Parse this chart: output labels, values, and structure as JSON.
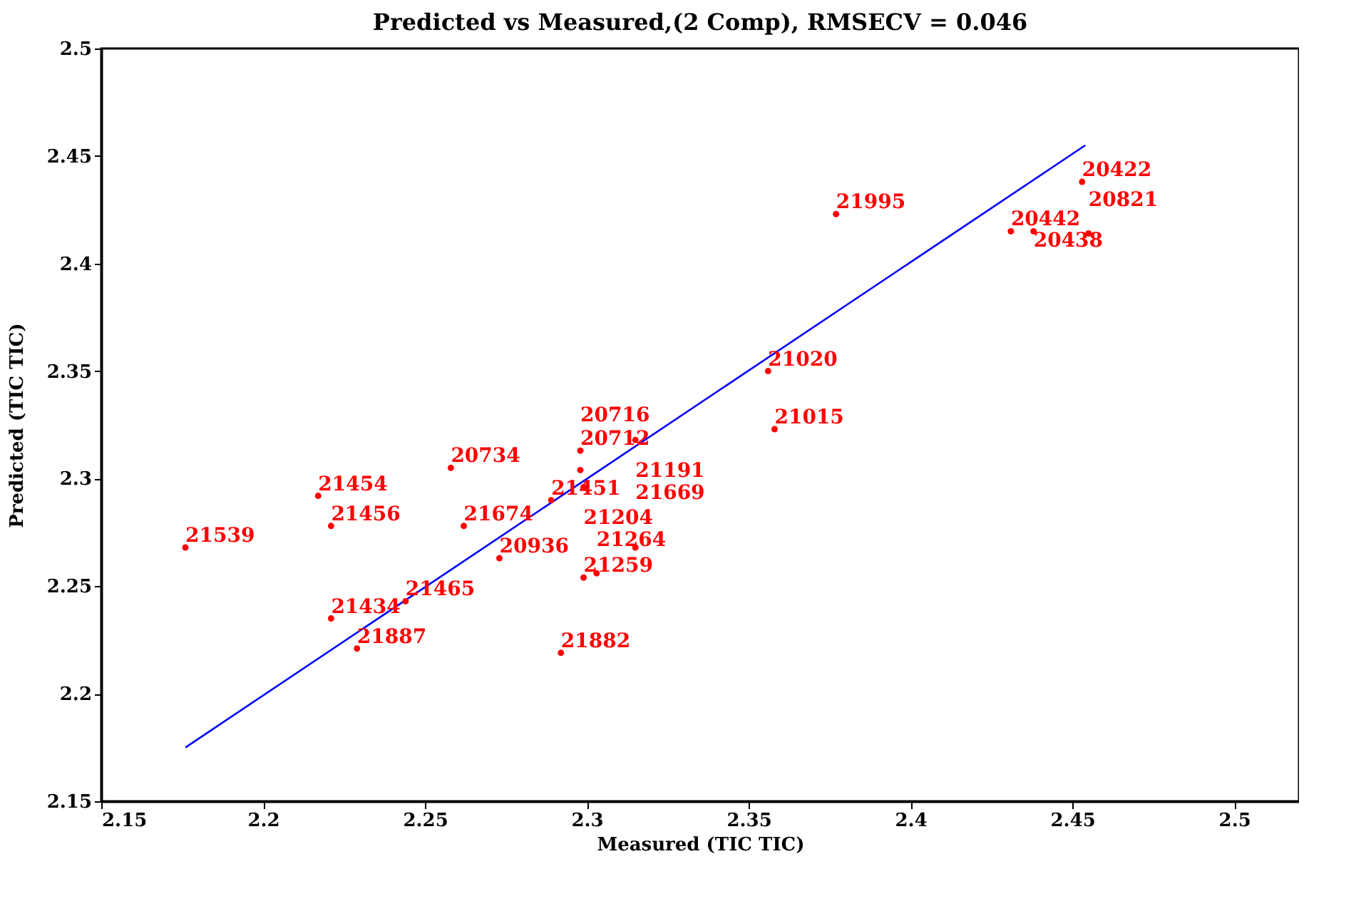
{
  "chart_data": {
    "type": "scatter",
    "title": "Predicted vs Measured,(2 Comp), RMSECV = 0.046",
    "xlabel": "Measured (TIC TIC)",
    "ylabel": "Predicted (TIC TIC)",
    "xlim": [
      2.15,
      2.52
    ],
    "ylim": [
      2.15,
      2.5
    ],
    "xticks": [
      2.15,
      2.2,
      2.25,
      2.3,
      2.35,
      2.4,
      2.45,
      2.5
    ],
    "yticks": [
      2.15,
      2.2,
      2.25,
      2.3,
      2.35,
      2.4,
      2.45,
      2.5
    ],
    "grid": false,
    "marker": "circle",
    "series": [
      {
        "type": "scatter",
        "color": "#ff0000",
        "x": [
          2.176,
          2.217,
          2.221,
          2.258,
          2.262,
          2.289,
          2.298,
          2.298,
          2.299,
          2.273,
          2.299,
          2.303,
          2.315,
          2.244,
          2.221,
          2.229,
          2.292,
          2.315,
          2.377,
          2.356,
          2.358,
          2.453,
          2.431,
          2.438,
          2.455
        ],
        "values": [
          2.268,
          2.292,
          2.278,
          2.305,
          2.278,
          2.29,
          2.313,
          2.304,
          2.296,
          2.263,
          2.254,
          2.256,
          2.268,
          2.243,
          2.235,
          2.221,
          2.219,
          2.318,
          2.423,
          2.35,
          2.323,
          2.438,
          2.415,
          2.415,
          2.414
        ]
      },
      {
        "type": "line",
        "marker": "none",
        "line_style": "solid",
        "color": "#0000ff",
        "x": [
          2.176,
          2.454
        ],
        "values": [
          2.175,
          2.455
        ]
      }
    ],
    "annotations": [
      {
        "text": "21539",
        "x": 2.176,
        "y": 2.268
      },
      {
        "text": "21454",
        "x": 2.217,
        "y": 2.292
      },
      {
        "text": "21456",
        "x": 2.221,
        "y": 2.278
      },
      {
        "text": "20734",
        "x": 2.258,
        "y": 2.305
      },
      {
        "text": "21674",
        "x": 2.262,
        "y": 2.278
      },
      {
        "text": "21451",
        "x": 2.289,
        "y": 2.29
      },
      {
        "text": "20712",
        "x": 2.298,
        "y": 2.313
      },
      {
        "text": "20716",
        "x": 2.298,
        "y": 2.304
      },
      {
        "text": "21204",
        "x": 2.299,
        "y": 2.296
      },
      {
        "text": "20936",
        "x": 2.273,
        "y": 2.263
      },
      {
        "text": "21259",
        "x": 2.299,
        "y": 2.254
      },
      {
        "text": "21264",
        "x": 2.303,
        "y": 2.256
      },
      {
        "text": "21669",
        "x": 2.315,
        "y": 2.268
      },
      {
        "text": "21465",
        "x": 2.244,
        "y": 2.243
      },
      {
        "text": "21434",
        "x": 2.221,
        "y": 2.235
      },
      {
        "text": "21887",
        "x": 2.229,
        "y": 2.221
      },
      {
        "text": "21882",
        "x": 2.292,
        "y": 2.219
      },
      {
        "text": "21191",
        "x": 2.315,
        "y": 2.318
      },
      {
        "text": "21995",
        "x": 2.377,
        "y": 2.423
      },
      {
        "text": "21020",
        "x": 2.356,
        "y": 2.35
      },
      {
        "text": "21015",
        "x": 2.358,
        "y": 2.323
      },
      {
        "text": "20422",
        "x": 2.453,
        "y": 2.438
      },
      {
        "text": "20442",
        "x": 2.431,
        "y": 2.415
      },
      {
        "text": "20438",
        "x": 2.438,
        "y": 2.415
      },
      {
        "text": "20821",
        "x": 2.455,
        "y": 2.414
      }
    ]
  }
}
